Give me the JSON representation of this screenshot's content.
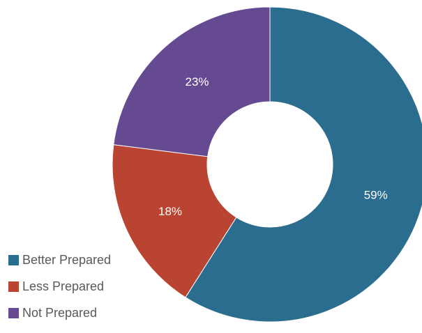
{
  "chart_data": {
    "type": "pie",
    "variant": "donut",
    "title": "",
    "slices": [
      {
        "name": "Better Prepared",
        "value": 59,
        "label": "59%",
        "color": "#2a6d8f"
      },
      {
        "name": "Less Prepared",
        "value": 18,
        "label": "18%",
        "color": "#b84431"
      },
      {
        "name": "Not Prepared",
        "value": 23,
        "label": "23%",
        "color": "#654a92"
      }
    ],
    "legend_position": "bottom-left",
    "data_labels": "inside"
  }
}
